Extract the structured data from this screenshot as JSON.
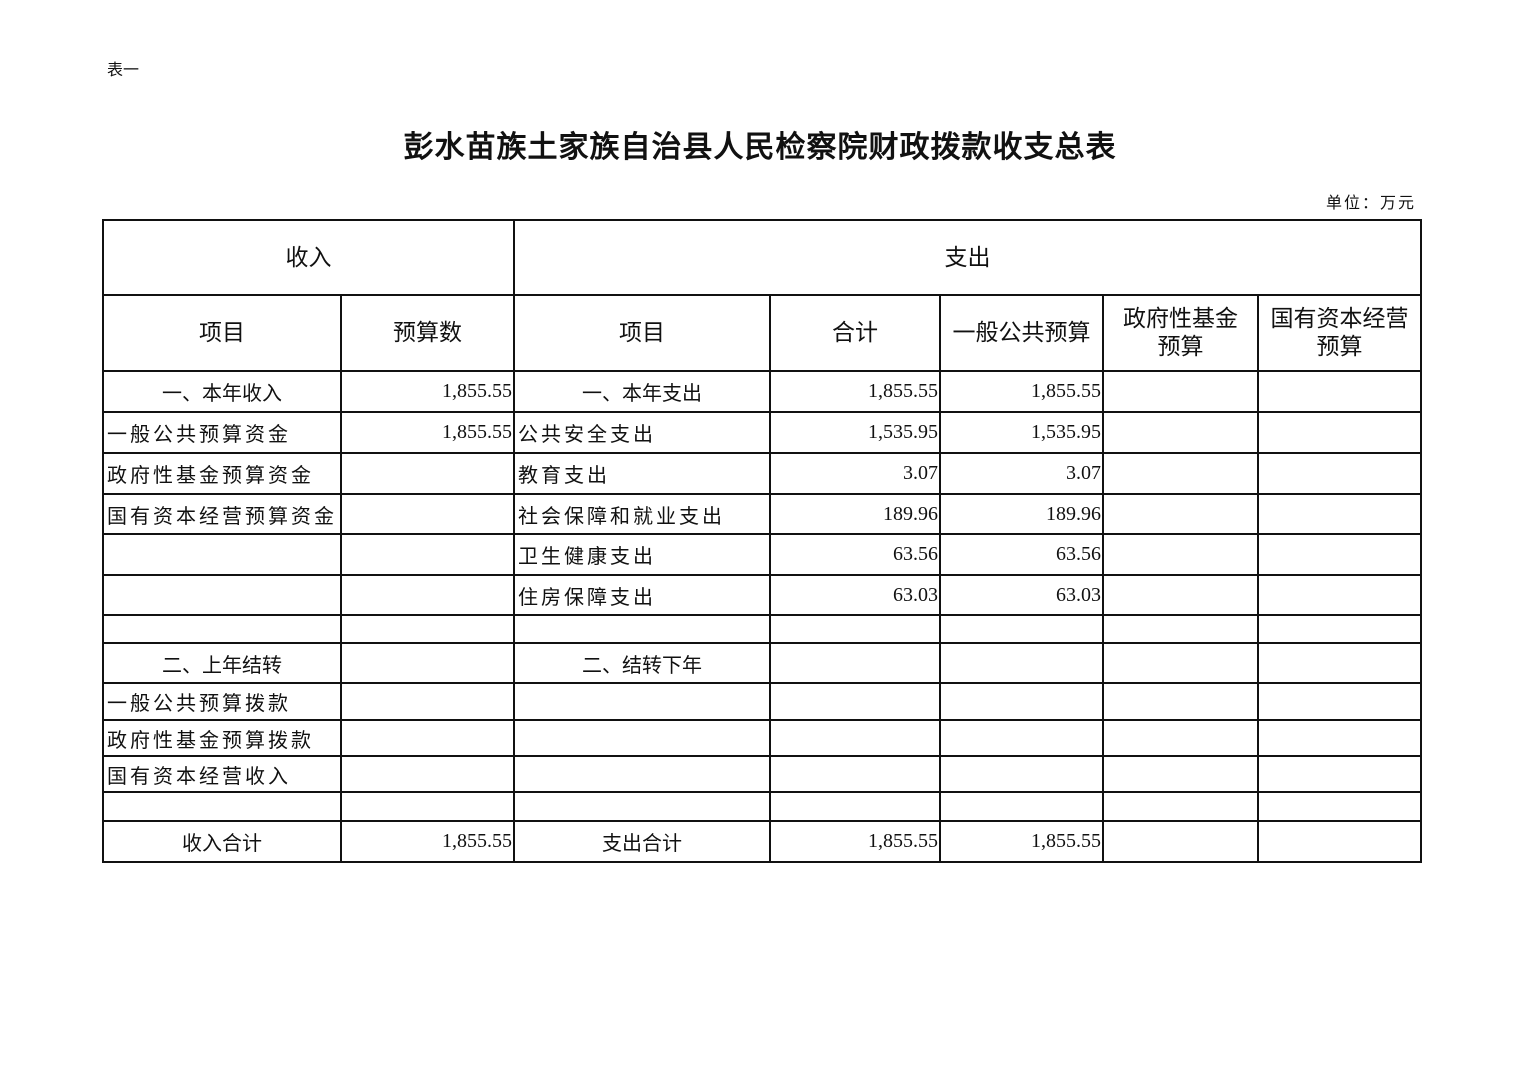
{
  "table_tag": "表一",
  "title": "彭水苗族土家族自治县人民检察院财政拨款收支总表",
  "unit": "单位：万元",
  "header": {
    "income": "收入",
    "expense": "支出",
    "columns": [
      "项目",
      "预算数",
      "项目",
      "合计",
      "一般公共预算",
      "政府性基金\n预算",
      "国有资本经营\n预算"
    ],
    "col5_line1": "政府性基金",
    "col5_line2": "预算",
    "col6_line1": "国有资本经营",
    "col6_line2": "预算"
  },
  "rows": [
    {
      "type": "section",
      "cells": [
        "一、本年收入",
        "1,855.55",
        "一、本年支出",
        "1,855.55",
        "1,855.55",
        "",
        ""
      ]
    },
    {
      "type": "item",
      "cells": [
        "一般公共预算资金",
        "1,855.55",
        "公共安全支出",
        "1,535.95",
        "1,535.95",
        "",
        ""
      ]
    },
    {
      "type": "item",
      "cells": [
        "政府性基金预算资金",
        "",
        "教育支出",
        "3.07",
        "3.07",
        "",
        ""
      ]
    },
    {
      "type": "item",
      "cells": [
        "国有资本经营预算资金",
        "",
        "社会保障和就业支出",
        "189.96",
        "189.96",
        "",
        ""
      ]
    },
    {
      "type": "item",
      "cells": [
        "",
        "",
        "卫生健康支出",
        "63.56",
        "63.56",
        "",
        ""
      ]
    },
    {
      "type": "item",
      "cells": [
        "",
        "",
        "住房保障支出",
        "63.03",
        "63.03",
        "",
        ""
      ]
    },
    {
      "type": "blank",
      "cells": [
        "",
        "",
        "",
        "",
        "",
        "",
        ""
      ]
    },
    {
      "type": "section",
      "cells": [
        "二、上年结转",
        "",
        "二、结转下年",
        "",
        "",
        "",
        ""
      ]
    },
    {
      "type": "item",
      "cells": [
        "一般公共预算拨款",
        "",
        "",
        "",
        "",
        "",
        ""
      ]
    },
    {
      "type": "item",
      "cells": [
        "政府性基金预算拨款",
        "",
        "",
        "",
        "",
        "",
        ""
      ]
    },
    {
      "type": "item",
      "cells": [
        "国有资本经营收入",
        "",
        "",
        "",
        "",
        "",
        ""
      ]
    },
    {
      "type": "blank",
      "cells": [
        "",
        "",
        "",
        "",
        "",
        "",
        ""
      ]
    },
    {
      "type": "section",
      "cells": [
        "收入合计",
        "1,855.55",
        "支出合计",
        "1,855.55",
        "1,855.55",
        "",
        ""
      ]
    }
  ]
}
